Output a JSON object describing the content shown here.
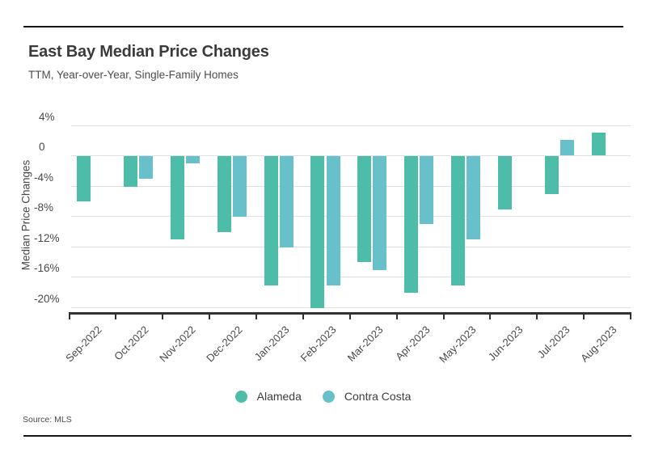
{
  "page": {
    "title": "East Bay Median Price Changes",
    "subtitle": "TTM, Year-over-Year, Single-Family Homes",
    "source": "Source: MLS"
  },
  "colors": {
    "alameda": "#4dbca8",
    "contra_costa": "#68c0cb",
    "grid": "#e0e0e0",
    "axis": "#313131",
    "text": "#494949",
    "title": "#3b3b3b",
    "rule": "#161616"
  },
  "legend": [
    {
      "key": "alameda",
      "label": "Alameda"
    },
    {
      "key": "contra_costa",
      "label": "Contra Costa"
    }
  ],
  "chart_data": {
    "type": "bar",
    "title": "East Bay Median Price Changes",
    "subtitle": "TTM, Year-over-Year, Single-Family Homes",
    "xlabel": "",
    "ylabel": "Median Price Changes",
    "ylim": [
      -22,
      4
    ],
    "grid": true,
    "legend_position": "bottom",
    "source": "Source: MLS",
    "yticks": [
      {
        "value": 4,
        "label": "4%"
      },
      {
        "value": 0,
        "label": "0"
      },
      {
        "value": -4,
        "label": "-4%"
      },
      {
        "value": -8,
        "label": "-8%"
      },
      {
        "value": -12,
        "label": "-12%"
      },
      {
        "value": -16,
        "label": "-16%"
      },
      {
        "value": -20,
        "label": "-20%"
      }
    ],
    "categories": [
      "Sep-2022",
      "Oct-2022",
      "Nov-2022",
      "Dec-2022",
      "Jan-2023",
      "Feb-2023",
      "Mar-2023",
      "Apr-2023",
      "May-2023",
      "Jun-2023",
      "Jul-2023",
      "Aug-2023"
    ],
    "series": [
      {
        "name": "Alameda",
        "color_key": "alameda",
        "values": [
          -6,
          -4,
          -11,
          -10,
          -17,
          -20,
          -14,
          -18,
          -17,
          -7,
          -5,
          3
        ]
      },
      {
        "name": "Contra Costa",
        "color_key": "contra_costa",
        "values": [
          null,
          -3,
          -1,
          -8,
          -12,
          -17,
          -15,
          -9,
          -11,
          null,
          2,
          null
        ]
      }
    ]
  }
}
